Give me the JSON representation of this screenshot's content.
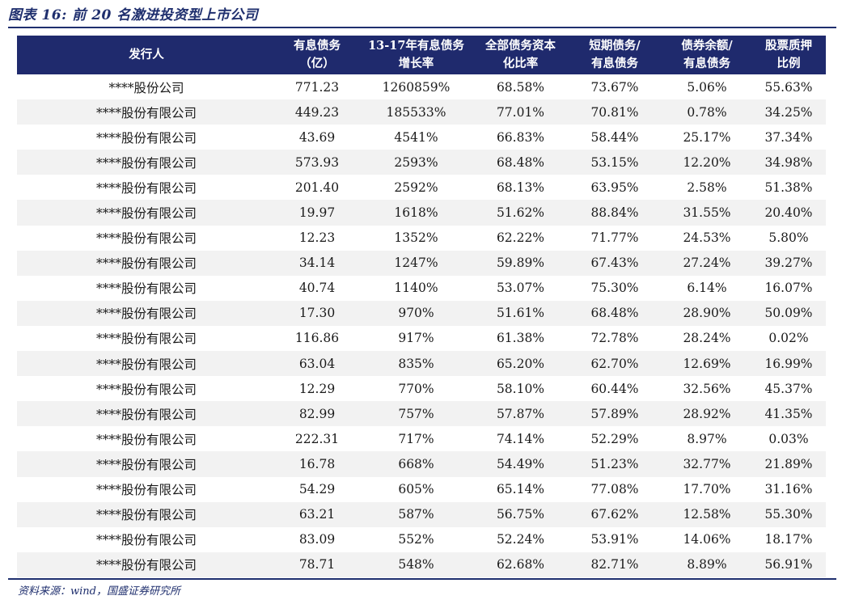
{
  "title": "图表 16:  前 20 名激进投资型上市公司",
  "source": "资料来源：wind，国盛证券研究所",
  "table": {
    "headers": [
      "发行人",
      "有息债务\n（亿）",
      "13-17年有息债务\n增长率",
      "全部债务资本\n化比率",
      "短期债务/\n有息债务",
      "债券余额/\n有息债务",
      "股票质押\n比例"
    ],
    "rows": [
      [
        "****股份公司",
        "771.23",
        "1260859%",
        "68.58%",
        "73.67%",
        "5.06%",
        "55.63%"
      ],
      [
        "****股份有限公司",
        "449.23",
        "185533%",
        "77.01%",
        "70.81%",
        "0.78%",
        "34.25%"
      ],
      [
        "****股份有限公司",
        "43.69",
        "4541%",
        "66.83%",
        "58.44%",
        "25.17%",
        "37.34%"
      ],
      [
        "****股份有限公司",
        "573.93",
        "2593%",
        "68.48%",
        "53.15%",
        "12.20%",
        "34.98%"
      ],
      [
        "****股份有限公司",
        "201.40",
        "2592%",
        "68.13%",
        "63.95%",
        "2.58%",
        "51.38%"
      ],
      [
        "****股份有限公司",
        "19.97",
        "1618%",
        "51.62%",
        "88.84%",
        "31.55%",
        "20.40%"
      ],
      [
        "****股份有限公司",
        "12.23",
        "1352%",
        "62.22%",
        "71.77%",
        "24.53%",
        "5.80%"
      ],
      [
        "****股份有限公司",
        "34.14",
        "1247%",
        "59.89%",
        "67.43%",
        "27.24%",
        "39.27%"
      ],
      [
        "****股份有限公司",
        "40.74",
        "1140%",
        "53.07%",
        "75.30%",
        "6.14%",
        "16.07%"
      ],
      [
        "****股份有限公司",
        "17.30",
        "970%",
        "51.61%",
        "68.48%",
        "28.90%",
        "50.09%"
      ],
      [
        "****股份有限公司",
        "116.86",
        "917%",
        "61.38%",
        "72.78%",
        "28.24%",
        "0.02%"
      ],
      [
        "****股份有限公司",
        "63.04",
        "835%",
        "65.20%",
        "62.70%",
        "12.69%",
        "16.99%"
      ],
      [
        "****股份有限公司",
        "12.29",
        "770%",
        "58.10%",
        "60.44%",
        "32.56%",
        "45.37%"
      ],
      [
        "****股份有限公司",
        "82.99",
        "757%",
        "57.87%",
        "57.89%",
        "28.92%",
        "41.35%"
      ],
      [
        "****股份有限公司",
        "222.31",
        "717%",
        "74.14%",
        "52.29%",
        "8.97%",
        "0.03%"
      ],
      [
        "****股份有限公司",
        "16.78",
        "668%",
        "54.49%",
        "51.23%",
        "32.77%",
        "21.89%"
      ],
      [
        "****股份有限公司",
        "54.29",
        "605%",
        "65.14%",
        "77.08%",
        "17.70%",
        "31.16%"
      ],
      [
        "****股份有限公司",
        "63.21",
        "587%",
        "56.75%",
        "67.62%",
        "12.58%",
        "55.30%"
      ],
      [
        "****股份有限公司",
        "83.09",
        "552%",
        "52.24%",
        "53.91%",
        "14.06%",
        "18.17%"
      ],
      [
        "****股份有限公司",
        "78.71",
        "548%",
        "62.68%",
        "82.71%",
        "8.89%",
        "56.91%"
      ]
    ]
  },
  "colors": {
    "header_bg": "#1f2a6d",
    "header_text": "#ffffff",
    "stripe": "#f2f2f2",
    "accent": "#1f2f6e"
  }
}
